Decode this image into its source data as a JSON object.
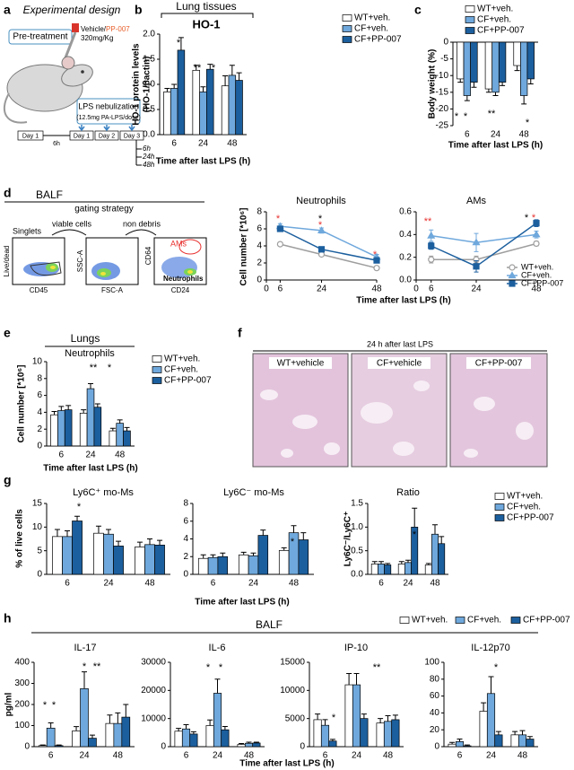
{
  "figure": {
    "panel_letters": [
      "a",
      "b",
      "c",
      "d",
      "e",
      "f",
      "g",
      "h"
    ],
    "design": {
      "title": "Experimental design",
      "pretreatment": "Pre-treatment",
      "drug_vehicle": "Vehicle/",
      "drug_name": "PP-007",
      "dose": "320mg/Kg",
      "lps": "LPS nebulization",
      "lps_dose": "(12.5mg PA-LPS/dose)",
      "day0": "Day 1",
      "gap": "6h",
      "days": [
        "Day 1",
        "Day 2",
        "Day 3"
      ],
      "timepoints": [
        "6h",
        "24h",
        "48h"
      ]
    },
    "b_header": "Lung tissues",
    "balf": {
      "title": "BALF",
      "gating": "gating strategy",
      "steps": [
        "Singlets",
        "viable cells",
        "non debris"
      ],
      "axes": [
        "Live/dead",
        "CD45",
        "SSC-A",
        "FSC-A",
        "CD64",
        "CD24"
      ],
      "gates": [
        "AMs",
        "Neutrophils"
      ]
    },
    "d_xlabel": "Time after last LPS (h)",
    "d_ylabel": "Cell number [*10⁶]",
    "e_header": "Lungs",
    "histology": {
      "title": "24 h after last LPS",
      "labels": [
        "WT+vehicle",
        "CF+vehicle",
        "CF+PP-007"
      ]
    },
    "g_ylabel": "% of live cells",
    "g_xlabel": "Time after last LPS (h)",
    "h_header": "BALF",
    "h_ylabel": "pg/ml",
    "h_xlabel": "Time after last LPS (h)"
  },
  "chart_data": [
    {
      "type": "bar",
      "title": "HO-1",
      "ylabel": [
        "HO-1 protein levels",
        "(HO-1/βactin)"
      ],
      "xlabel": "Time after last LPS (h)",
      "categories": [
        "6",
        "24",
        "48"
      ],
      "series": [
        {
          "name": "WT+veh.",
          "color": "#ffffff",
          "values": [
            0.85,
            1.28,
            0.97
          ],
          "errors": [
            0.07,
            0.1,
            0.2
          ]
        },
        {
          "name": "CF+veh.",
          "color": "#6fa8dc",
          "values": [
            0.92,
            0.85,
            1.18
          ],
          "errors": [
            0.08,
            0.1,
            0.2
          ]
        },
        {
          "name": "CF+PP-007",
          "color": "#1c5f9e",
          "values": [
            1.68,
            1.3,
            1.08
          ],
          "errors": [
            0.25,
            0.1,
            0.15
          ]
        }
      ],
      "ylim": [
        0,
        2
      ],
      "yticks": [
        {
          "value": 0,
          "label": "0.0"
        },
        0.5,
        {
          "value": 1,
          "label": "1.0"
        },
        1.5,
        {
          "value": 2,
          "label": "2.0"
        }
      ],
      "legend": "upper right",
      "annotations": [
        {
          "text": "*",
          "color": "#000000"
        },
        {
          "text": "**",
          "color": "#000000"
        },
        {
          "text": "*",
          "color": "#000000"
        }
      ]
    },
    {
      "type": "bar",
      "ylabel": [
        "Body weight (%)"
      ],
      "xlabel": "Time after last LPS (h)",
      "categories": [
        "6",
        "24",
        "48"
      ],
      "series": [
        {
          "name": "WT+veh.",
          "color": "#ffffff",
          "values": [
            -11,
            -14,
            -7
          ],
          "errors": [
            1,
            1,
            1.5
          ]
        },
        {
          "name": "CF+veh.",
          "color": "#6fa8dc",
          "values": [
            -16,
            -15,
            -16
          ],
          "errors": [
            1.5,
            1,
            2.5
          ]
        },
        {
          "name": "CF+PP-007",
          "color": "#1c5f9e",
          "values": [
            -12,
            -12,
            -11
          ],
          "errors": [
            1.5,
            1,
            1.5
          ]
        }
      ],
      "ylim": [
        -25,
        0
      ],
      "yticks": [
        0,
        -5,
        -10,
        -15,
        -20,
        -25
      ],
      "legend": "upper right",
      "annotations": [
        {
          "text": "*",
          "color": "#000000"
        },
        {
          "text": "*",
          "color": "#000000"
        },
        {
          "text": "**",
          "color": "#000000"
        },
        {
          "text": "*",
          "color": "#000000"
        }
      ]
    },
    {
      "type": "line",
      "title": "Neutrophils",
      "x": [
        6,
        24,
        48
      ],
      "series": [
        {
          "name": "WT+veh.",
          "color": "#9e9e9e",
          "marker": "circle",
          "values": [
            4.2,
            3.0,
            1.4
          ],
          "errors": [
            0.2,
            0.2,
            0.2
          ]
        },
        {
          "name": "CF+veh.",
          "color": "#6fa8dc",
          "marker": "triangle",
          "values": [
            6.3,
            5.8,
            2.7
          ],
          "errors": [
            0.3,
            0.3,
            0.3
          ]
        },
        {
          "name": "CF+PP-007",
          "color": "#1c5f9e",
          "marker": "square",
          "values": [
            6.0,
            3.6,
            2.3
          ],
          "errors": [
            0.3,
            0.3,
            0.3
          ]
        }
      ],
      "xlim": [
        0,
        48
      ],
      "xticks": [
        0,
        6,
        24,
        48
      ],
      "ylim": [
        0,
        8
      ],
      "yticks": [
        0,
        2,
        4,
        6,
        8
      ],
      "annotations": [
        {
          "text": "*",
          "color": "#e8312f"
        },
        {
          "text": "*",
          "color": "#000000"
        },
        {
          "text": "*",
          "color": "#e8312f"
        },
        {
          "text": "*",
          "color": "#e8312f"
        }
      ]
    },
    {
      "type": "line",
      "title": "AMs",
      "x": [
        6,
        24,
        48
      ],
      "series": [
        {
          "name": "WT+veh.",
          "color": "#9e9e9e",
          "marker": "circle",
          "values": [
            0.18,
            0.18,
            0.32
          ],
          "errors": [
            0.03,
            0.03,
            0.02
          ]
        },
        {
          "name": "CF+veh.",
          "color": "#6fa8dc",
          "marker": "triangle",
          "values": [
            0.39,
            0.33,
            0.4
          ],
          "errors": [
            0.05,
            0.08,
            0.03
          ]
        },
        {
          "name": "CF+PP-007",
          "color": "#1c5f9e",
          "marker": "square",
          "values": [
            0.3,
            0.12,
            0.5
          ],
          "errors": [
            0.03,
            0.05,
            0.03
          ]
        }
      ],
      "xlim": [
        0,
        48
      ],
      "xticks": [
        0,
        6,
        24,
        48
      ],
      "ylim": [
        0,
        0.6
      ],
      "yticks": [
        {
          "value": 0,
          "label": "0.0"
        },
        0.2,
        0.4,
        0.6
      ],
      "legend": "lower right",
      "annotations": [
        {
          "text": "**",
          "color": "#e8312f"
        },
        {
          "text": "*",
          "color": "#000000"
        },
        {
          "text": "*",
          "color": "#e8312f"
        }
      ]
    },
    {
      "type": "bar",
      "title": "Neutrophils",
      "ylabel": [
        "Cell number [*10⁶]"
      ],
      "xlabel": "Time after last LPS (h)",
      "categories": [
        "6",
        "24",
        "48"
      ],
      "series": [
        {
          "name": "WT+veh.",
          "color": "#ffffff",
          "values": [
            3.7,
            3.9,
            1.8
          ],
          "errors": [
            0.4,
            0.4,
            0.3
          ]
        },
        {
          "name": "CF+veh.",
          "color": "#6fa8dc",
          "values": [
            4.2,
            6.8,
            2.7
          ],
          "errors": [
            0.5,
            0.6,
            0.4
          ]
        },
        {
          "name": "CF+PP-007",
          "color": "#1c5f9e",
          "values": [
            4.3,
            4.6,
            1.8
          ],
          "errors": [
            0.5,
            0.4,
            0.4
          ]
        }
      ],
      "ylim": [
        0,
        10
      ],
      "yticks": [
        0,
        2,
        4,
        6,
        8,
        10
      ],
      "legend": "upper right",
      "annotations": [
        {
          "text": "**",
          "color": "#000000"
        },
        {
          "text": "*",
          "color": "#000000"
        }
      ]
    },
    {
      "type": "bar",
      "title": "Ly6C⁺ mo-Ms",
      "categories": [
        "6",
        "24",
        "48"
      ],
      "series": [
        {
          "name": "WT+veh.",
          "color": "#ffffff",
          "values": [
            8,
            8.7,
            5.8
          ],
          "errors": [
            1.5,
            1.5,
            1
          ]
        },
        {
          "name": "CF+veh.",
          "color": "#6fa8dc",
          "values": [
            8,
            8.5,
            6.3
          ],
          "errors": [
            1.2,
            1,
            1.2
          ]
        },
        {
          "name": "CF+PP-007",
          "color": "#1c5f9e",
          "values": [
            11.3,
            6,
            6.2
          ],
          "errors": [
            1,
            1,
            1
          ]
        }
      ],
      "ylim": [
        0,
        15
      ],
      "yticks": [
        0,
        5,
        10,
        15
      ],
      "annotations": [
        {
          "text": "*",
          "color": "#000000"
        }
      ]
    },
    {
      "type": "bar",
      "title": "Ly6C⁻ mo-Ms",
      "categories": [
        "6",
        "24",
        "48"
      ],
      "series": [
        {
          "name": "WT+veh.",
          "color": "#ffffff",
          "values": [
            1.8,
            2.2,
            2.7
          ],
          "errors": [
            0.4,
            0.3,
            0.3
          ]
        },
        {
          "name": "CF+veh.",
          "color": "#6fa8dc",
          "values": [
            1.9,
            2.1,
            4.7
          ],
          "errors": [
            0.3,
            0.3,
            0.8
          ]
        },
        {
          "name": "CF+PP-007",
          "color": "#1c5f9e",
          "values": [
            2,
            4.4,
            3.9
          ],
          "errors": [
            0.4,
            0.6,
            0.8
          ]
        }
      ],
      "ylim": [
        0,
        8
      ],
      "yticks": [
        0,
        2,
        4,
        6,
        8
      ],
      "annotations": [
        {
          "text": "*",
          "color": "#000000"
        }
      ]
    },
    {
      "type": "bar",
      "title": "Ratio",
      "ylabel": [
        "Ly6C⁻/Ly6C⁺"
      ],
      "categories": [
        "6",
        "24",
        "48"
      ],
      "series": [
        {
          "name": "WT+veh.",
          "color": "#ffffff",
          "values": [
            0.22,
            0.22,
            0.2
          ],
          "errors": [
            0.05,
            0.05,
            0.03
          ]
        },
        {
          "name": "CF+veh.",
          "color": "#6fa8dc",
          "values": [
            0.22,
            0.25,
            0.85
          ],
          "errors": [
            0.05,
            0.05,
            0.2
          ]
        },
        {
          "name": "CF+PP-007",
          "color": "#1c5f9e",
          "values": [
            0.2,
            1.0,
            0.65
          ],
          "errors": [
            0.03,
            0.4,
            0.15
          ]
        }
      ],
      "ylim": [
        0,
        1.5
      ],
      "yticks": [
        {
          "value": 0,
          "label": "0.0"
        },
        0.5,
        {
          "value": 1,
          "label": "1.0"
        },
        1.5
      ],
      "legend": "upper right",
      "annotations": [
        {
          "text": "*",
          "color": "#000000"
        }
      ]
    },
    {
      "type": "bar",
      "title": "IL-17",
      "categories": [
        "6",
        "24",
        "48"
      ],
      "series": [
        {
          "name": "WT+veh.",
          "color": "#ffffff",
          "values": [
            5,
            75,
            110
          ],
          "errors": [
            3,
            20,
            40
          ]
        },
        {
          "name": "CF+veh.",
          "color": "#6fa8dc",
          "values": [
            88,
            275,
            110
          ],
          "errors": [
            25,
            80,
            50
          ]
        },
        {
          "name": "CF+PP-007",
          "color": "#1c5f9e",
          "values": [
            5,
            40,
            140
          ],
          "errors": [
            3,
            15,
            60
          ]
        }
      ],
      "ylim": [
        0,
        400
      ],
      "yticks": [
        0,
        100,
        200,
        300,
        400
      ],
      "annotations": [
        {
          "text": "*",
          "color": "#000000"
        },
        {
          "text": "*",
          "color": "#000000"
        },
        {
          "text": "*",
          "color": "#000000"
        },
        {
          "text": "**",
          "color": "#000000"
        }
      ]
    },
    {
      "type": "bar",
      "title": "IL-6",
      "categories": [
        "6",
        "24",
        "48"
      ],
      "series": [
        {
          "name": "WT+veh.",
          "color": "#ffffff",
          "values": [
            5500,
            7500,
            800
          ],
          "errors": [
            1000,
            2000,
            300
          ]
        },
        {
          "name": "CF+veh.",
          "color": "#6fa8dc",
          "values": [
            6300,
            19000,
            1200
          ],
          "errors": [
            1500,
            5000,
            400
          ]
        },
        {
          "name": "CF+PP-007",
          "color": "#1c5f9e",
          "values": [
            4500,
            6000,
            1300
          ],
          "errors": [
            800,
            1200,
            300
          ]
        }
      ],
      "ylim": [
        0,
        30000
      ],
      "yticks": [
        0,
        10000,
        20000,
        30000
      ],
      "annotations": [
        {
          "text": "*",
          "color": "#000000"
        },
        {
          "text": "*",
          "color": "#000000"
        }
      ]
    },
    {
      "type": "bar",
      "title": "IP-10",
      "categories": [
        "6",
        "24",
        "48"
      ],
      "series": [
        {
          "name": "WT+veh.",
          "color": "#ffffff",
          "values": [
            4800,
            11000,
            4200
          ],
          "errors": [
            1000,
            2000,
            800
          ]
        },
        {
          "name": "CF+veh.",
          "color": "#6fa8dc",
          "values": [
            3800,
            11000,
            4500
          ],
          "errors": [
            1000,
            2000,
            1000
          ]
        },
        {
          "name": "CF+PP-007",
          "color": "#1c5f9e",
          "values": [
            1000,
            5000,
            4800
          ],
          "errors": [
            300,
            800,
            800
          ]
        }
      ],
      "ylim": [
        0,
        15000
      ],
      "yticks": [
        0,
        5000,
        10000,
        15000
      ],
      "annotations": [
        {
          "text": "*",
          "color": "#000000"
        },
        {
          "text": "**",
          "color": "#000000"
        }
      ]
    },
    {
      "type": "bar",
      "title": "IL-12p70",
      "categories": [
        "6",
        "24",
        "48"
      ],
      "series": [
        {
          "name": "WT+veh.",
          "color": "#ffffff",
          "values": [
            3,
            42,
            14
          ],
          "errors": [
            2,
            10,
            4
          ]
        },
        {
          "name": "CF+veh.",
          "color": "#6fa8dc",
          "values": [
            6,
            63,
            14
          ],
          "errors": [
            3,
            20,
            5
          ]
        },
        {
          "name": "CF+PP-007",
          "color": "#1c5f9e",
          "values": [
            1,
            14,
            9
          ],
          "errors": [
            1,
            4,
            3
          ]
        }
      ],
      "ylim": [
        0,
        100
      ],
      "yticks": [
        0,
        20,
        40,
        60,
        80,
        100
      ],
      "legend": "top",
      "annotations": [
        {
          "text": "*",
          "color": "#000000"
        }
      ]
    }
  ]
}
